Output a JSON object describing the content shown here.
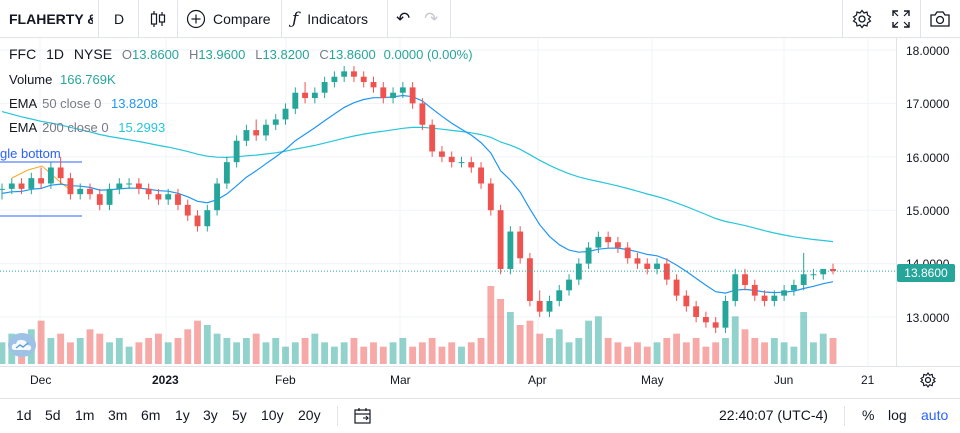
{
  "toolbar": {
    "symbol": "FLAHERTY &",
    "interval": "D",
    "compare_label": "Compare",
    "indicators_label": "Indicators"
  },
  "legend": {
    "symbol": "FFC",
    "interval": "1D",
    "exchange": "NYSE",
    "o_key": "O",
    "o_val": "13.8600",
    "h_key": "H",
    "h_val": "13.9600",
    "l_key": "L",
    "l_val": "13.8200",
    "c_key": "C",
    "c_val": "13.8600",
    "change": "0.0000 (0.00%)",
    "volume_label": "Volume",
    "volume_val": "166.769K",
    "ema50_name": "EMA",
    "ema50_params": "50 close 0",
    "ema50_val": "13.8208",
    "ema200_name": "EMA",
    "ema200_params": "200 close 0",
    "ema200_val": "15.2993"
  },
  "drawing_label": "gle bottom",
  "price_axis": {
    "labels": [
      "18.0000",
      "17.0000",
      "16.0000",
      "15.0000",
      "14.0000",
      "13.0000"
    ],
    "current": "13.8600"
  },
  "time_axis": {
    "labels": [
      "Dec",
      "2023",
      "Feb",
      "Mar",
      "Apr",
      "May",
      "Jun",
      "21"
    ]
  },
  "bottom": {
    "ranges": [
      "1d",
      "5d",
      "1m",
      "3m",
      "6m",
      "1y",
      "3y",
      "5y",
      "10y",
      "20y"
    ],
    "time": "22:40:07 (UTC-4)",
    "percent": "%",
    "log": "log",
    "auto": "auto"
  },
  "colors": {
    "up": "#26a69a",
    "down": "#ef5350",
    "ema50": "#2196f3",
    "ema200": "#26c6da",
    "accent": "#2962ff"
  },
  "chart_data": {
    "type": "candlestick",
    "ylim": [
      12.0,
      18.2
    ],
    "candles": [
      [
        15.4,
        15.5,
        15.2,
        15.4
      ],
      [
        15.4,
        15.6,
        15.3,
        15.5
      ],
      [
        15.5,
        15.6,
        15.3,
        15.4
      ],
      [
        15.4,
        15.7,
        15.3,
        15.6
      ],
      [
        15.6,
        15.8,
        15.4,
        15.5
      ],
      [
        15.5,
        15.9,
        15.4,
        15.8
      ],
      [
        15.8,
        16.0,
        15.5,
        15.6
      ],
      [
        15.6,
        15.7,
        15.2,
        15.3
      ],
      [
        15.3,
        15.5,
        15.2,
        15.4
      ],
      [
        15.4,
        15.5,
        15.2,
        15.3
      ],
      [
        15.3,
        15.4,
        15.0,
        15.1
      ],
      [
        15.1,
        15.5,
        15.0,
        15.4
      ],
      [
        15.4,
        15.6,
        15.3,
        15.5
      ],
      [
        15.5,
        15.6,
        15.4,
        15.5
      ],
      [
        15.5,
        15.6,
        15.3,
        15.4
      ],
      [
        15.4,
        15.5,
        15.2,
        15.3
      ],
      [
        15.3,
        15.4,
        15.1,
        15.2
      ],
      [
        15.2,
        15.4,
        15.1,
        15.3
      ],
      [
        15.3,
        15.4,
        15.0,
        15.1
      ],
      [
        15.1,
        15.2,
        14.8,
        14.9
      ],
      [
        14.9,
        15.0,
        14.6,
        14.7
      ],
      [
        14.7,
        15.1,
        14.6,
        15.0
      ],
      [
        15.0,
        15.6,
        14.9,
        15.5
      ],
      [
        15.5,
        16.0,
        15.4,
        15.9
      ],
      [
        15.9,
        16.4,
        15.8,
        16.3
      ],
      [
        16.3,
        16.6,
        16.2,
        16.5
      ],
      [
        16.5,
        16.7,
        16.3,
        16.4
      ],
      [
        16.4,
        16.7,
        16.3,
        16.6
      ],
      [
        16.6,
        16.8,
        16.5,
        16.7
      ],
      [
        16.7,
        17.0,
        16.6,
        16.9
      ],
      [
        16.9,
        17.3,
        16.8,
        17.2
      ],
      [
        17.2,
        17.4,
        17.0,
        17.1
      ],
      [
        17.1,
        17.3,
        17.0,
        17.2
      ],
      [
        17.2,
        17.5,
        17.1,
        17.4
      ],
      [
        17.4,
        17.6,
        17.3,
        17.5
      ],
      [
        17.5,
        17.7,
        17.4,
        17.6
      ],
      [
        17.6,
        17.7,
        17.4,
        17.5
      ],
      [
        17.5,
        17.6,
        17.3,
        17.4
      ],
      [
        17.4,
        17.5,
        17.2,
        17.3
      ],
      [
        17.3,
        17.4,
        17.0,
        17.1
      ],
      [
        17.1,
        17.3,
        17.0,
        17.2
      ],
      [
        17.2,
        17.4,
        17.1,
        17.3
      ],
      [
        17.3,
        17.4,
        16.9,
        17.0
      ],
      [
        17.0,
        17.1,
        16.5,
        16.6
      ],
      [
        16.6,
        16.7,
        16.0,
        16.1
      ],
      [
        16.1,
        16.2,
        15.9,
        16.0
      ],
      [
        16.0,
        16.1,
        15.8,
        15.9
      ],
      [
        15.9,
        16.0,
        15.8,
        15.9
      ],
      [
        15.9,
        16.0,
        15.7,
        15.8
      ],
      [
        15.8,
        15.9,
        15.4,
        15.5
      ],
      [
        15.5,
        15.6,
        14.9,
        15.0
      ],
      [
        15.0,
        15.1,
        13.8,
        13.9
      ],
      [
        13.9,
        14.7,
        13.8,
        14.6
      ],
      [
        14.6,
        14.7,
        14.0,
        14.1
      ],
      [
        14.1,
        14.2,
        13.2,
        13.3
      ],
      [
        13.3,
        13.5,
        13.0,
        13.1
      ],
      [
        13.1,
        13.4,
        13.0,
        13.3
      ],
      [
        13.3,
        13.6,
        13.2,
        13.5
      ],
      [
        13.5,
        13.8,
        13.4,
        13.7
      ],
      [
        13.7,
        14.1,
        13.6,
        14.0
      ],
      [
        14.0,
        14.4,
        13.9,
        14.3
      ],
      [
        14.3,
        14.6,
        14.2,
        14.5
      ],
      [
        14.5,
        14.6,
        14.3,
        14.4
      ],
      [
        14.4,
        14.5,
        14.2,
        14.3
      ],
      [
        14.3,
        14.4,
        14.0,
        14.1
      ],
      [
        14.1,
        14.2,
        13.9,
        14.0
      ],
      [
        14.0,
        14.1,
        13.8,
        13.9
      ],
      [
        13.9,
        14.1,
        13.8,
        14.0
      ],
      [
        14.0,
        14.1,
        13.6,
        13.7
      ],
      [
        13.7,
        13.8,
        13.3,
        13.4
      ],
      [
        13.4,
        13.5,
        13.1,
        13.2
      ],
      [
        13.2,
        13.3,
        12.9,
        13.0
      ],
      [
        13.0,
        13.1,
        12.8,
        12.9
      ],
      [
        12.9,
        13.0,
        12.7,
        12.8
      ],
      [
        12.8,
        13.4,
        12.7,
        13.3
      ],
      [
        13.3,
        13.9,
        13.2,
        13.8
      ],
      [
        13.8,
        13.9,
        13.5,
        13.6
      ],
      [
        13.6,
        13.7,
        13.3,
        13.4
      ],
      [
        13.4,
        13.5,
        13.2,
        13.3
      ],
      [
        13.3,
        13.5,
        13.2,
        13.4
      ],
      [
        13.4,
        13.6,
        13.3,
        13.5
      ],
      [
        13.5,
        13.7,
        13.4,
        13.6
      ],
      [
        13.6,
        14.2,
        13.5,
        13.8
      ],
      [
        13.8,
        13.9,
        13.7,
        13.8
      ],
      [
        13.8,
        13.9,
        13.7,
        13.9
      ],
      [
        13.9,
        14.0,
        13.8,
        13.86
      ]
    ],
    "volumes": [
      0.5,
      0.7,
      0.6,
      0.8,
      1.0,
      0.6,
      0.7,
      0.5,
      0.6,
      0.8,
      0.7,
      0.5,
      0.6,
      0.4,
      0.5,
      0.6,
      0.7,
      0.5,
      0.6,
      0.8,
      1.0,
      0.9,
      0.7,
      0.6,
      0.5,
      0.6,
      0.7,
      0.5,
      0.6,
      0.4,
      0.5,
      0.6,
      0.7,
      0.5,
      0.4,
      0.5,
      0.6,
      0.4,
      0.5,
      0.4,
      0.5,
      0.6,
      0.4,
      0.5,
      0.6,
      0.4,
      0.5,
      0.4,
      0.5,
      0.6,
      1.8,
      1.5,
      1.2,
      0.9,
      1.0,
      0.7,
      0.6,
      0.8,
      0.5,
      0.6,
      1.0,
      1.1,
      0.6,
      0.5,
      0.4,
      0.5,
      0.4,
      0.5,
      0.6,
      0.7,
      0.5,
      0.6,
      0.4,
      0.5,
      0.6,
      1.1,
      0.8,
      0.6,
      0.5,
      0.6,
      0.5,
      0.4,
      1.2,
      0.5,
      0.7,
      0.6
    ]
  }
}
